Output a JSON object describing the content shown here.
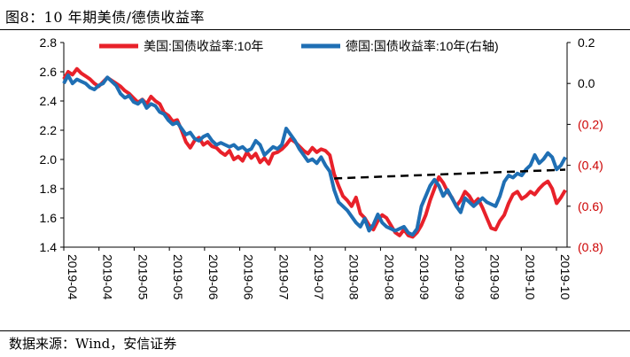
{
  "header": {
    "title": "图8：10 年期美债/德债收益率"
  },
  "footer": {
    "source": "数据来源：Wind，安信证券"
  },
  "chart_data": {
    "type": "line",
    "title": "图8：10 年期美债/德债收益率",
    "y_left": {
      "range": [
        1.4,
        2.8
      ],
      "ticks": [
        "1.4",
        "1.6",
        "1.8",
        "2.0",
        "2.2",
        "2.4",
        "2.6",
        "2.8"
      ]
    },
    "y_right": {
      "range": [
        -0.8,
        0.2
      ],
      "ticks": [
        "0.2",
        "0.0",
        "(0.2)",
        "(0.4)",
        "(0.6)",
        "(0.8)"
      ],
      "tick_color": "#cc0000"
    },
    "x_ticks": [
      "2019-04",
      "2019-04",
      "2019-05",
      "2019-05",
      "2019-06",
      "2019-06",
      "2019-07",
      "2019-07",
      "2019-08",
      "2019-08",
      "2019-09",
      "2019-09",
      "2019-09",
      "2019-10",
      "2019-10"
    ],
    "grid": false,
    "legend_position": "top",
    "series": [
      {
        "name": "美国:国债收益率:10年",
        "axis": "left",
        "color": "#e8212a",
        "values": [
          2.55,
          2.6,
          2.58,
          2.62,
          2.59,
          2.57,
          2.55,
          2.52,
          2.5,
          2.53,
          2.56,
          2.54,
          2.52,
          2.5,
          2.47,
          2.45,
          2.42,
          2.39,
          2.41,
          2.38,
          2.43,
          2.4,
          2.38,
          2.32,
          2.3,
          2.26,
          2.27,
          2.2,
          2.12,
          2.08,
          2.13,
          2.15,
          2.1,
          2.12,
          2.09,
          2.08,
          2.05,
          2.03,
          2.06,
          2.0,
          2.02,
          1.99,
          2.05,
          2.01,
          2.04,
          1.98,
          2.01,
          1.97,
          2.04,
          2.05,
          2.07,
          2.1,
          2.14,
          2.12,
          2.09,
          2.06,
          2.04,
          2.08,
          2.05,
          2.07,
          2.06,
          2.03,
          1.9,
          1.82,
          1.75,
          1.72,
          1.68,
          1.74,
          1.63,
          1.6,
          1.55,
          1.52,
          1.58,
          1.62,
          1.6,
          1.55,
          1.5,
          1.48,
          1.52,
          1.48,
          1.47,
          1.5,
          1.55,
          1.62,
          1.72,
          1.8,
          1.88,
          1.84,
          1.78,
          1.74,
          1.68,
          1.72,
          1.78,
          1.75,
          1.7,
          1.73,
          1.67,
          1.6,
          1.53,
          1.52,
          1.58,
          1.62,
          1.7,
          1.76,
          1.78,
          1.73,
          1.75,
          1.78,
          1.76,
          1.8,
          1.83,
          1.85,
          1.8,
          1.7,
          1.74,
          1.79
        ]
      },
      {
        "name": "德国:国债收益率:10年(右轴)",
        "axis": "right",
        "color": "#1f6fb4",
        "values": [
          -0.0,
          0.04,
          -0.0,
          0.02,
          0.01,
          0.0,
          -0.02,
          -0.03,
          -0.01,
          0.0,
          0.03,
          0.01,
          -0.01,
          -0.05,
          -0.07,
          -0.06,
          -0.09,
          -0.1,
          -0.08,
          -0.12,
          -0.1,
          -0.11,
          -0.14,
          -0.15,
          -0.18,
          -0.2,
          -0.19,
          -0.22,
          -0.25,
          -0.24,
          -0.27,
          -0.28,
          -0.26,
          -0.25,
          -0.28,
          -0.3,
          -0.29,
          -0.3,
          -0.31,
          -0.3,
          -0.32,
          -0.31,
          -0.33,
          -0.32,
          -0.28,
          -0.3,
          -0.35,
          -0.33,
          -0.31,
          -0.32,
          -0.3,
          -0.22,
          -0.25,
          -0.28,
          -0.32,
          -0.35,
          -0.38,
          -0.37,
          -0.39,
          -0.36,
          -0.4,
          -0.43,
          -0.52,
          -0.58,
          -0.6,
          -0.62,
          -0.65,
          -0.68,
          -0.7,
          -0.66,
          -0.72,
          -0.69,
          -0.64,
          -0.68,
          -0.7,
          -0.71,
          -0.72,
          -0.71,
          -0.7,
          -0.73,
          -0.74,
          -0.71,
          -0.6,
          -0.55,
          -0.5,
          -0.47,
          -0.5,
          -0.55,
          -0.52,
          -0.56,
          -0.6,
          -0.63,
          -0.56,
          -0.58,
          -0.6,
          -0.58,
          -0.56,
          -0.58,
          -0.59,
          -0.6,
          -0.55,
          -0.48,
          -0.45,
          -0.46,
          -0.44,
          -0.45,
          -0.42,
          -0.4,
          -0.35,
          -0.39,
          -0.37,
          -0.34,
          -0.36,
          -0.42,
          -0.4,
          -0.36
        ]
      }
    ],
    "trendline": {
      "axis": "left",
      "style": "dashed",
      "color": "#000000",
      "from_index": 62,
      "to_index": 115,
      "from_value": 1.87,
      "to_value": 1.93
    }
  }
}
